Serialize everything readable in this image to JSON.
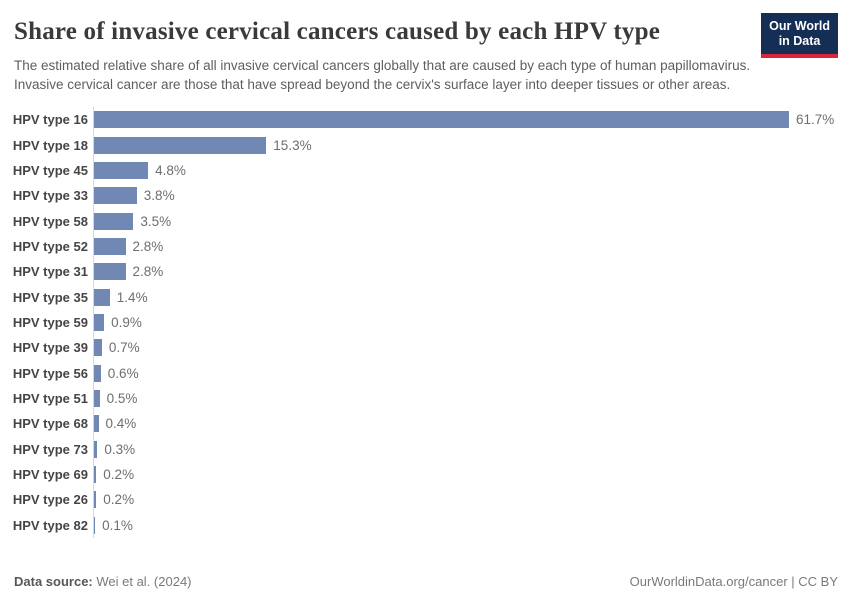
{
  "header": {
    "title": "Share of invasive cervical cancers caused by each HPV type",
    "subtitle": "The estimated relative share of all invasive cervical cancers globally that are caused by each type of human papillomavirus. Invasive cervical cancer are those that have spread beyond the cervix's surface layer into deeper tissues or other areas.",
    "logo": {
      "line1": "Our World",
      "line2": "in Data"
    }
  },
  "chart_data": {
    "type": "bar",
    "orientation": "horizontal",
    "title": "Share of invasive cervical cancers caused by each HPV type",
    "categories": [
      "HPV type 16",
      "HPV type 18",
      "HPV type 45",
      "HPV type 33",
      "HPV type 58",
      "HPV type 52",
      "HPV type 31",
      "HPV type 35",
      "HPV type 59",
      "HPV type 39",
      "HPV type 56",
      "HPV type 51",
      "HPV type 68",
      "HPV type 73",
      "HPV type 69",
      "HPV type 26",
      "HPV type 82"
    ],
    "values": [
      61.7,
      15.3,
      4.8,
      3.8,
      3.5,
      2.8,
      2.8,
      1.4,
      0.9,
      0.7,
      0.6,
      0.5,
      0.4,
      0.3,
      0.2,
      0.2,
      0.1
    ],
    "value_suffix": "%",
    "value_decimals": 1,
    "xlim": [
      0,
      62
    ],
    "grid": false,
    "legend": "none",
    "value_labels": "end-of-bar",
    "bar_color": "#7288b4",
    "axis_line_color": "#d9d9d9"
  },
  "footer": {
    "datasource_label": "Data source:",
    "datasource_value": " Wei et al. (2024)",
    "link": "OurWorldinData.org/cancer",
    "separator": " | ",
    "license": "CC BY"
  },
  "colors": {
    "bar": "#7288b4",
    "logo_bg": "#152e55",
    "logo_accent": "#d9253a",
    "title_text": "#3a3a3a",
    "subtitle_text": "#5e5e5e"
  }
}
